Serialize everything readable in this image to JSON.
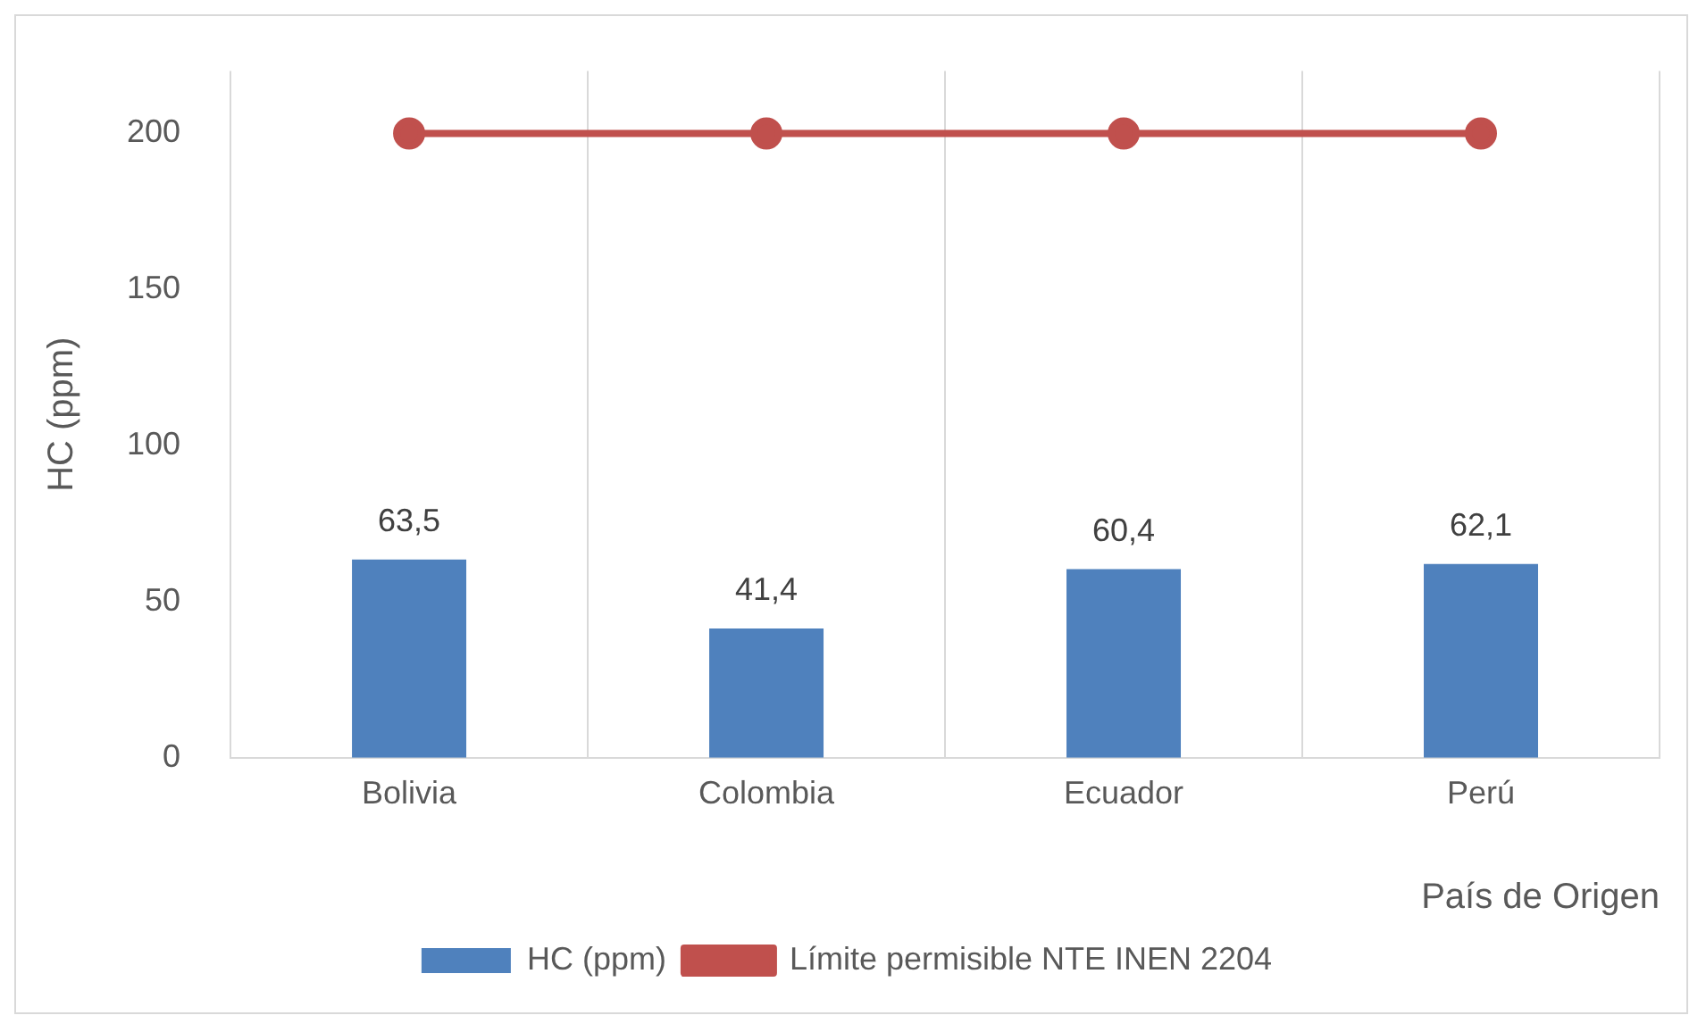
{
  "chart_data": {
    "type": "bar",
    "xlabel": "País de Origen",
    "ylabel": "HC (ppm)",
    "categories": [
      "Bolivia",
      "Colombia",
      "Ecuador",
      "Perú"
    ],
    "series": [
      {
        "name": "HC (ppm)",
        "color": "#4f81bd",
        "values": [
          63.5,
          41.4,
          60.4,
          62.1
        ],
        "value_labels": [
          "63,5",
          "41,4",
          "60,4",
          "62,1"
        ]
      },
      {
        "name": "Límite permisible NTE INEN 2204",
        "type": "line",
        "color": "#c0504d",
        "values": [
          200,
          200,
          200,
          200
        ],
        "marker": "circle"
      }
    ],
    "ylim": [
      0,
      220
    ],
    "yticks": [
      0,
      50,
      100,
      150,
      200
    ],
    "grid": "x",
    "legend": "bottom"
  }
}
